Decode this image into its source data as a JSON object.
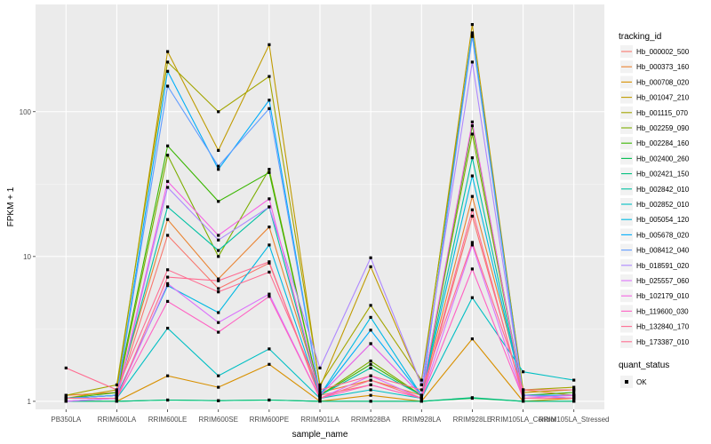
{
  "chart_data": {
    "type": "line",
    "title": "",
    "xlabel": "sample_name",
    "ylabel": "FPKM + 1",
    "y_scale": "log10",
    "ylim": [
      0.88,
      550
    ],
    "y_ticks": [
      1,
      10,
      100
    ],
    "y_tick_labels": [
      "1",
      "10",
      "100"
    ],
    "grid": true,
    "panel_background": "#ebebeb",
    "categories": [
      "PB350LA",
      "RRIM600LA",
      "RRIM600LE",
      "RRIM600SE",
      "RRIM600PE",
      "RRIM901LA",
      "RRIM928BA",
      "RRIM928LA",
      "RRIM928LE",
      "RRIM105LA_Control",
      "RRIM105LA_Stressed"
    ],
    "x_tick_labels": [
      "PB350LA",
      "RRIM600LA",
      "RRIM600LE",
      "RRIM600SE",
      "RRIM600PE",
      "RRIM901LA",
      "RRIM928BA",
      "RRIM928LA",
      "RRIM928LE",
      "RRIM105LA_Control",
      "RRIM105LA_Stressed"
    ],
    "legend": {
      "position": "right",
      "color_title": "tracking_id",
      "shape_title": "quant_status",
      "shape_entries": [
        "OK"
      ]
    },
    "series": [
      {
        "name": "Hb_000002_500",
        "color": "#F8766D",
        "values": [
          1.05,
          1.1,
          14,
          6,
          9,
          1.1,
          1.3,
          1.05,
          19,
          1.1,
          1.05
        ]
      },
      {
        "name": "Hb_000373_160",
        "color": "#EA8331",
        "values": [
          1.1,
          1.15,
          18,
          7,
          16,
          1.15,
          1.4,
          1.1,
          26,
          1.2,
          1.1
        ]
      },
      {
        "name": "Hb_000708_020",
        "color": "#D89000",
        "values": [
          1.0,
          1.0,
          1.5,
          1.25,
          1.8,
          1.0,
          1.1,
          1.0,
          2.7,
          1.0,
          1.05
        ]
      },
      {
        "name": "Hb_001047_210",
        "color": "#C09B00",
        "values": [
          1.05,
          1.2,
          260,
          54,
          290,
          1.25,
          8.5,
          1.3,
          400,
          1.15,
          1.2
        ]
      },
      {
        "name": "Hb_001115_070",
        "color": "#A3A500",
        "values": [
          1.1,
          1.3,
          220,
          100,
          175,
          1.3,
          4.6,
          1.4,
          340,
          1.2,
          1.25
        ]
      },
      {
        "name": "Hb_002259_090",
        "color": "#7CAE00",
        "values": [
          1.05,
          1.1,
          50,
          10,
          40,
          1.1,
          1.9,
          1.1,
          70,
          1.1,
          1.1
        ]
      },
      {
        "name": "Hb_002284_160",
        "color": "#39B600",
        "values": [
          1.05,
          1.15,
          58,
          24,
          38,
          1.1,
          1.8,
          1.1,
          80,
          1.1,
          1.15
        ]
      },
      {
        "name": "Hb_002400_260",
        "color": "#00BB4E",
        "values": [
          1.0,
          1.0,
          1.02,
          1.01,
          1.02,
          1.0,
          1.0,
          1.0,
          1.05,
          1.0,
          1.0
        ]
      },
      {
        "name": "Hb_002421_150",
        "color": "#00BF7D",
        "values": [
          1.0,
          1.0,
          1.02,
          1.01,
          1.02,
          1.0,
          1.0,
          1.0,
          1.06,
          1.0,
          1.0
        ]
      },
      {
        "name": "Hb_002842_010",
        "color": "#00C1A3",
        "values": [
          1.05,
          1.1,
          22,
          11,
          22,
          1.1,
          1.7,
          1.1,
          48,
          1.1,
          1.1
        ]
      },
      {
        "name": "Hb_002852_010",
        "color": "#00BFC4",
        "values": [
          1.0,
          1.05,
          3.2,
          1.5,
          2.3,
          1.05,
          1.2,
          1.05,
          5.2,
          1.6,
          1.4
        ]
      },
      {
        "name": "Hb_005054_120",
        "color": "#00B9E3",
        "values": [
          1.05,
          1.1,
          6.3,
          4.1,
          12,
          1.1,
          3.8,
          1.1,
          36,
          1.1,
          1.1
        ]
      },
      {
        "name": "Hb_005678_020",
        "color": "#00ADFA",
        "values": [
          1.05,
          1.1,
          190,
          40,
          120,
          1.1,
          3.1,
          1.1,
          350,
          1.1,
          1.1
        ]
      },
      {
        "name": "Hb_008412_040",
        "color": "#619CFF",
        "values": [
          1.05,
          1.1,
          150,
          42,
          105,
          1.1,
          2.5,
          1.1,
          330,
          1.1,
          1.1
        ]
      },
      {
        "name": "Hb_018591_020",
        "color": "#AE87FF",
        "values": [
          1.0,
          1.05,
          30,
          13,
          22,
          1.7,
          9.8,
          1.3,
          220,
          1.1,
          1.05
        ]
      },
      {
        "name": "Hb_025557_060",
        "color": "#DB72FB",
        "values": [
          1.0,
          1.05,
          6.5,
          3.5,
          5.5,
          1.05,
          1.5,
          1.05,
          12,
          1.05,
          1.05
        ]
      },
      {
        "name": "Hb_102179_010",
        "color": "#F564E3",
        "values": [
          1.05,
          1.05,
          33,
          14,
          25,
          1.1,
          2.5,
          1.1,
          85,
          1.05,
          1.1
        ]
      },
      {
        "name": "Hb_119600_030",
        "color": "#FF61C3",
        "values": [
          1.05,
          1.05,
          4.9,
          3.0,
          5.3,
          1.05,
          1.3,
          1.05,
          8.2,
          1.05,
          1.05
        ]
      },
      {
        "name": "Hb_132840_170",
        "color": "#FF6C91",
        "values": [
          1.7,
          1.2,
          8.1,
          5.7,
          7.8,
          1.2,
          1.5,
          1.2,
          12.5,
          1.2,
          1.2
        ]
      },
      {
        "name": "Hb_173387_010",
        "color": "#FF6C91",
        "values": [
          1.05,
          1.05,
          7.2,
          6.8,
          9.2,
          1.05,
          1.4,
          1.05,
          21,
          1.05,
          1.05
        ]
      }
    ]
  }
}
